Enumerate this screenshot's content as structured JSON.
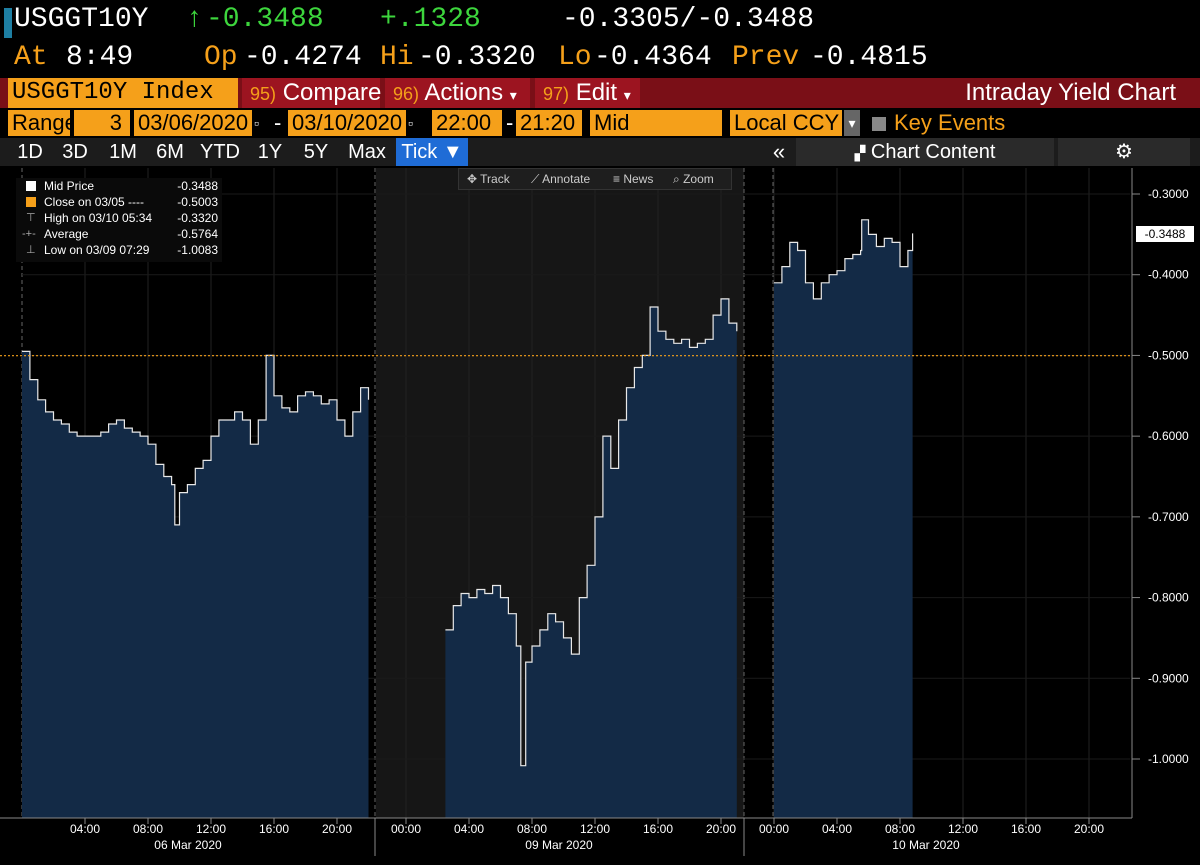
{
  "header": {
    "ticker": "USGGT10Y",
    "change_arrow": "↑",
    "last": "-0.3488",
    "change": "+.1328",
    "bid_ask": "-0.3305/-0.3488",
    "at_label": "At",
    "time": "8:49",
    "op_label": "Op",
    "open": "-0.4274",
    "hi_label": "Hi",
    "high": "-0.3320",
    "lo_label": "Lo",
    "low": "-0.4364",
    "prev_label": "Prev",
    "prev": "-0.4815"
  },
  "function_bar": {
    "security": "USGGT10Y Index",
    "compare_num": "95)",
    "compare": "Compare",
    "actions_num": "96)",
    "actions": "Actions",
    "edit_num": "97)",
    "edit": "Edit",
    "dropdown_glyph": "▾",
    "title": "Intraday Yield Chart"
  },
  "range": {
    "label": "Range",
    "days": "3",
    "start_date": "03/06/2020",
    "date_sep": "-",
    "end_date": "03/10/2020",
    "start_time": "22:00",
    "time_sep": "-",
    "end_time": "21:20",
    "price_type": "Mid",
    "currency": "Local CCY",
    "key_events": "Key Events",
    "calendar_glyph": "▫",
    "select_glyph": "▾"
  },
  "tabs": {
    "items": [
      "1D",
      "3D",
      "1M",
      "6M",
      "YTD",
      "1Y",
      "5Y",
      "Max"
    ],
    "tick": "Tick ▼",
    "collapse": "«",
    "chart_content": "Chart Content",
    "chart_icon": "chart-icon",
    "settings_icon": "gear-icon"
  },
  "toolbar": {
    "track": "Track",
    "annotate": "Annotate",
    "news": "News",
    "zoom": "Zoom"
  },
  "legend": [
    {
      "label": "Mid Price",
      "value": "-0.3488",
      "color": "#ffffff"
    },
    {
      "label": "Close on 03/05 ----",
      "value": "-0.5003",
      "color": "#f5a01a"
    },
    {
      "label": "High on 03/10 05:34",
      "value": "-0.3320",
      "color": "#aaaaaa"
    },
    {
      "label": "Average",
      "value": "-0.5764",
      "color": "#aaaaaa"
    },
    {
      "label": "Low on 03/09 07:29",
      "value": "-1.0083",
      "color": "#aaaaaa"
    }
  ],
  "colors": {
    "orange": "#f5a01a",
    "green": "#3dd63d",
    "area_fill": "#132a46",
    "function_bar": "#9c1420",
    "tick_tab": "#1f6cd6"
  },
  "chart_data": {
    "type": "area",
    "ylim": [
      -1.05,
      -0.26
    ],
    "yticks": [
      -0.3,
      -0.4,
      -0.5,
      -0.6,
      -0.7,
      -0.8,
      -0.9,
      -1.0
    ],
    "ytick_labels": [
      "-0.3000",
      "-0.4000",
      "-0.5000",
      "-0.6000",
      "-0.7000",
      "-0.8000",
      "-0.9000",
      "-1.0000"
    ],
    "last_value_label": "-0.3488",
    "prev_close_line": -0.5003,
    "panels": [
      {
        "date_label": "06 Mar 2020",
        "hours_shown": [
          "04:00",
          "08:00",
          "12:00",
          "16:00",
          "20:00"
        ],
        "data_start_hour": 0,
        "points": [
          [
            0,
            -0.495
          ],
          [
            0.5,
            -0.53
          ],
          [
            1,
            -0.555
          ],
          [
            1.5,
            -0.57
          ],
          [
            2,
            -0.58
          ],
          [
            2.5,
            -0.585
          ],
          [
            3,
            -0.595
          ],
          [
            3.5,
            -0.6
          ],
          [
            4,
            -0.6
          ],
          [
            4.5,
            -0.6
          ],
          [
            5,
            -0.595
          ],
          [
            5.5,
            -0.585
          ],
          [
            6,
            -0.58
          ],
          [
            6.5,
            -0.59
          ],
          [
            7,
            -0.595
          ],
          [
            7.5,
            -0.6
          ],
          [
            8,
            -0.61
          ],
          [
            8.5,
            -0.635
          ],
          [
            9,
            -0.65
          ],
          [
            9.5,
            -0.66
          ],
          [
            9.7,
            -0.71
          ],
          [
            10,
            -0.67
          ],
          [
            10.5,
            -0.66
          ],
          [
            11,
            -0.64
          ],
          [
            11.5,
            -0.63
          ],
          [
            12,
            -0.6
          ],
          [
            12.5,
            -0.58
          ],
          [
            13,
            -0.58
          ],
          [
            13.5,
            -0.57
          ],
          [
            14,
            -0.58
          ],
          [
            14.5,
            -0.61
          ],
          [
            15,
            -0.58
          ],
          [
            15.5,
            -0.5
          ],
          [
            16,
            -0.55
          ],
          [
            16.5,
            -0.565
          ],
          [
            17,
            -0.57
          ],
          [
            17.5,
            -0.55
          ],
          [
            18,
            -0.545
          ],
          [
            18.5,
            -0.55
          ],
          [
            19,
            -0.56
          ],
          [
            19.5,
            -0.555
          ],
          [
            20,
            -0.58
          ],
          [
            20.5,
            -0.6
          ],
          [
            21,
            -0.57
          ],
          [
            21.5,
            -0.54
          ],
          [
            22,
            -0.555
          ]
        ]
      },
      {
        "date_label": "09 Mar 2020",
        "hours_shown": [
          "00:00",
          "04:00",
          "08:00",
          "12:00",
          "16:00",
          "20:00"
        ],
        "data_start_hour": 2.5,
        "points": [
          [
            2.5,
            -0.84
          ],
          [
            3,
            -0.81
          ],
          [
            3.5,
            -0.795
          ],
          [
            4,
            -0.8
          ],
          [
            4.5,
            -0.79
          ],
          [
            5,
            -0.795
          ],
          [
            5.5,
            -0.785
          ],
          [
            6,
            -0.8
          ],
          [
            6.5,
            -0.82
          ],
          [
            7,
            -0.86
          ],
          [
            7.29,
            -1.0083
          ],
          [
            7.6,
            -0.88
          ],
          [
            8,
            -0.86
          ],
          [
            8.5,
            -0.84
          ],
          [
            9,
            -0.82
          ],
          [
            9.5,
            -0.83
          ],
          [
            10,
            -0.85
          ],
          [
            10.5,
            -0.87
          ],
          [
            11,
            -0.8
          ],
          [
            11.5,
            -0.76
          ],
          [
            12,
            -0.7
          ],
          [
            12.5,
            -0.6
          ],
          [
            13,
            -0.64
          ],
          [
            13.5,
            -0.58
          ],
          [
            14,
            -0.54
          ],
          [
            14.5,
            -0.515
          ],
          [
            15,
            -0.5
          ],
          [
            15.5,
            -0.44
          ],
          [
            16,
            -0.47
          ],
          [
            16.5,
            -0.48
          ],
          [
            17,
            -0.485
          ],
          [
            17.5,
            -0.48
          ],
          [
            18,
            -0.49
          ],
          [
            18.5,
            -0.485
          ],
          [
            19,
            -0.48
          ],
          [
            19.5,
            -0.45
          ],
          [
            20,
            -0.43
          ],
          [
            20.5,
            -0.46
          ],
          [
            21,
            -0.47
          ]
        ]
      },
      {
        "date_label": "10 Mar 2020",
        "hours_shown": [
          "00:00",
          "04:00",
          "08:00",
          "12:00",
          "16:00",
          "20:00"
        ],
        "data_start_hour": 0,
        "points": [
          [
            0,
            -0.41
          ],
          [
            0.5,
            -0.39
          ],
          [
            1,
            -0.36
          ],
          [
            1.5,
            -0.37
          ],
          [
            2,
            -0.41
          ],
          [
            2.5,
            -0.43
          ],
          [
            3,
            -0.41
          ],
          [
            3.5,
            -0.4
          ],
          [
            4,
            -0.395
          ],
          [
            4.5,
            -0.38
          ],
          [
            5,
            -0.375
          ],
          [
            5.5,
            -0.37
          ],
          [
            5.57,
            -0.332
          ],
          [
            6,
            -0.35
          ],
          [
            6.5,
            -0.365
          ],
          [
            7,
            -0.355
          ],
          [
            7.5,
            -0.36
          ],
          [
            8,
            -0.39
          ],
          [
            8.5,
            -0.37
          ],
          [
            8.8,
            -0.3488
          ]
        ]
      }
    ]
  }
}
